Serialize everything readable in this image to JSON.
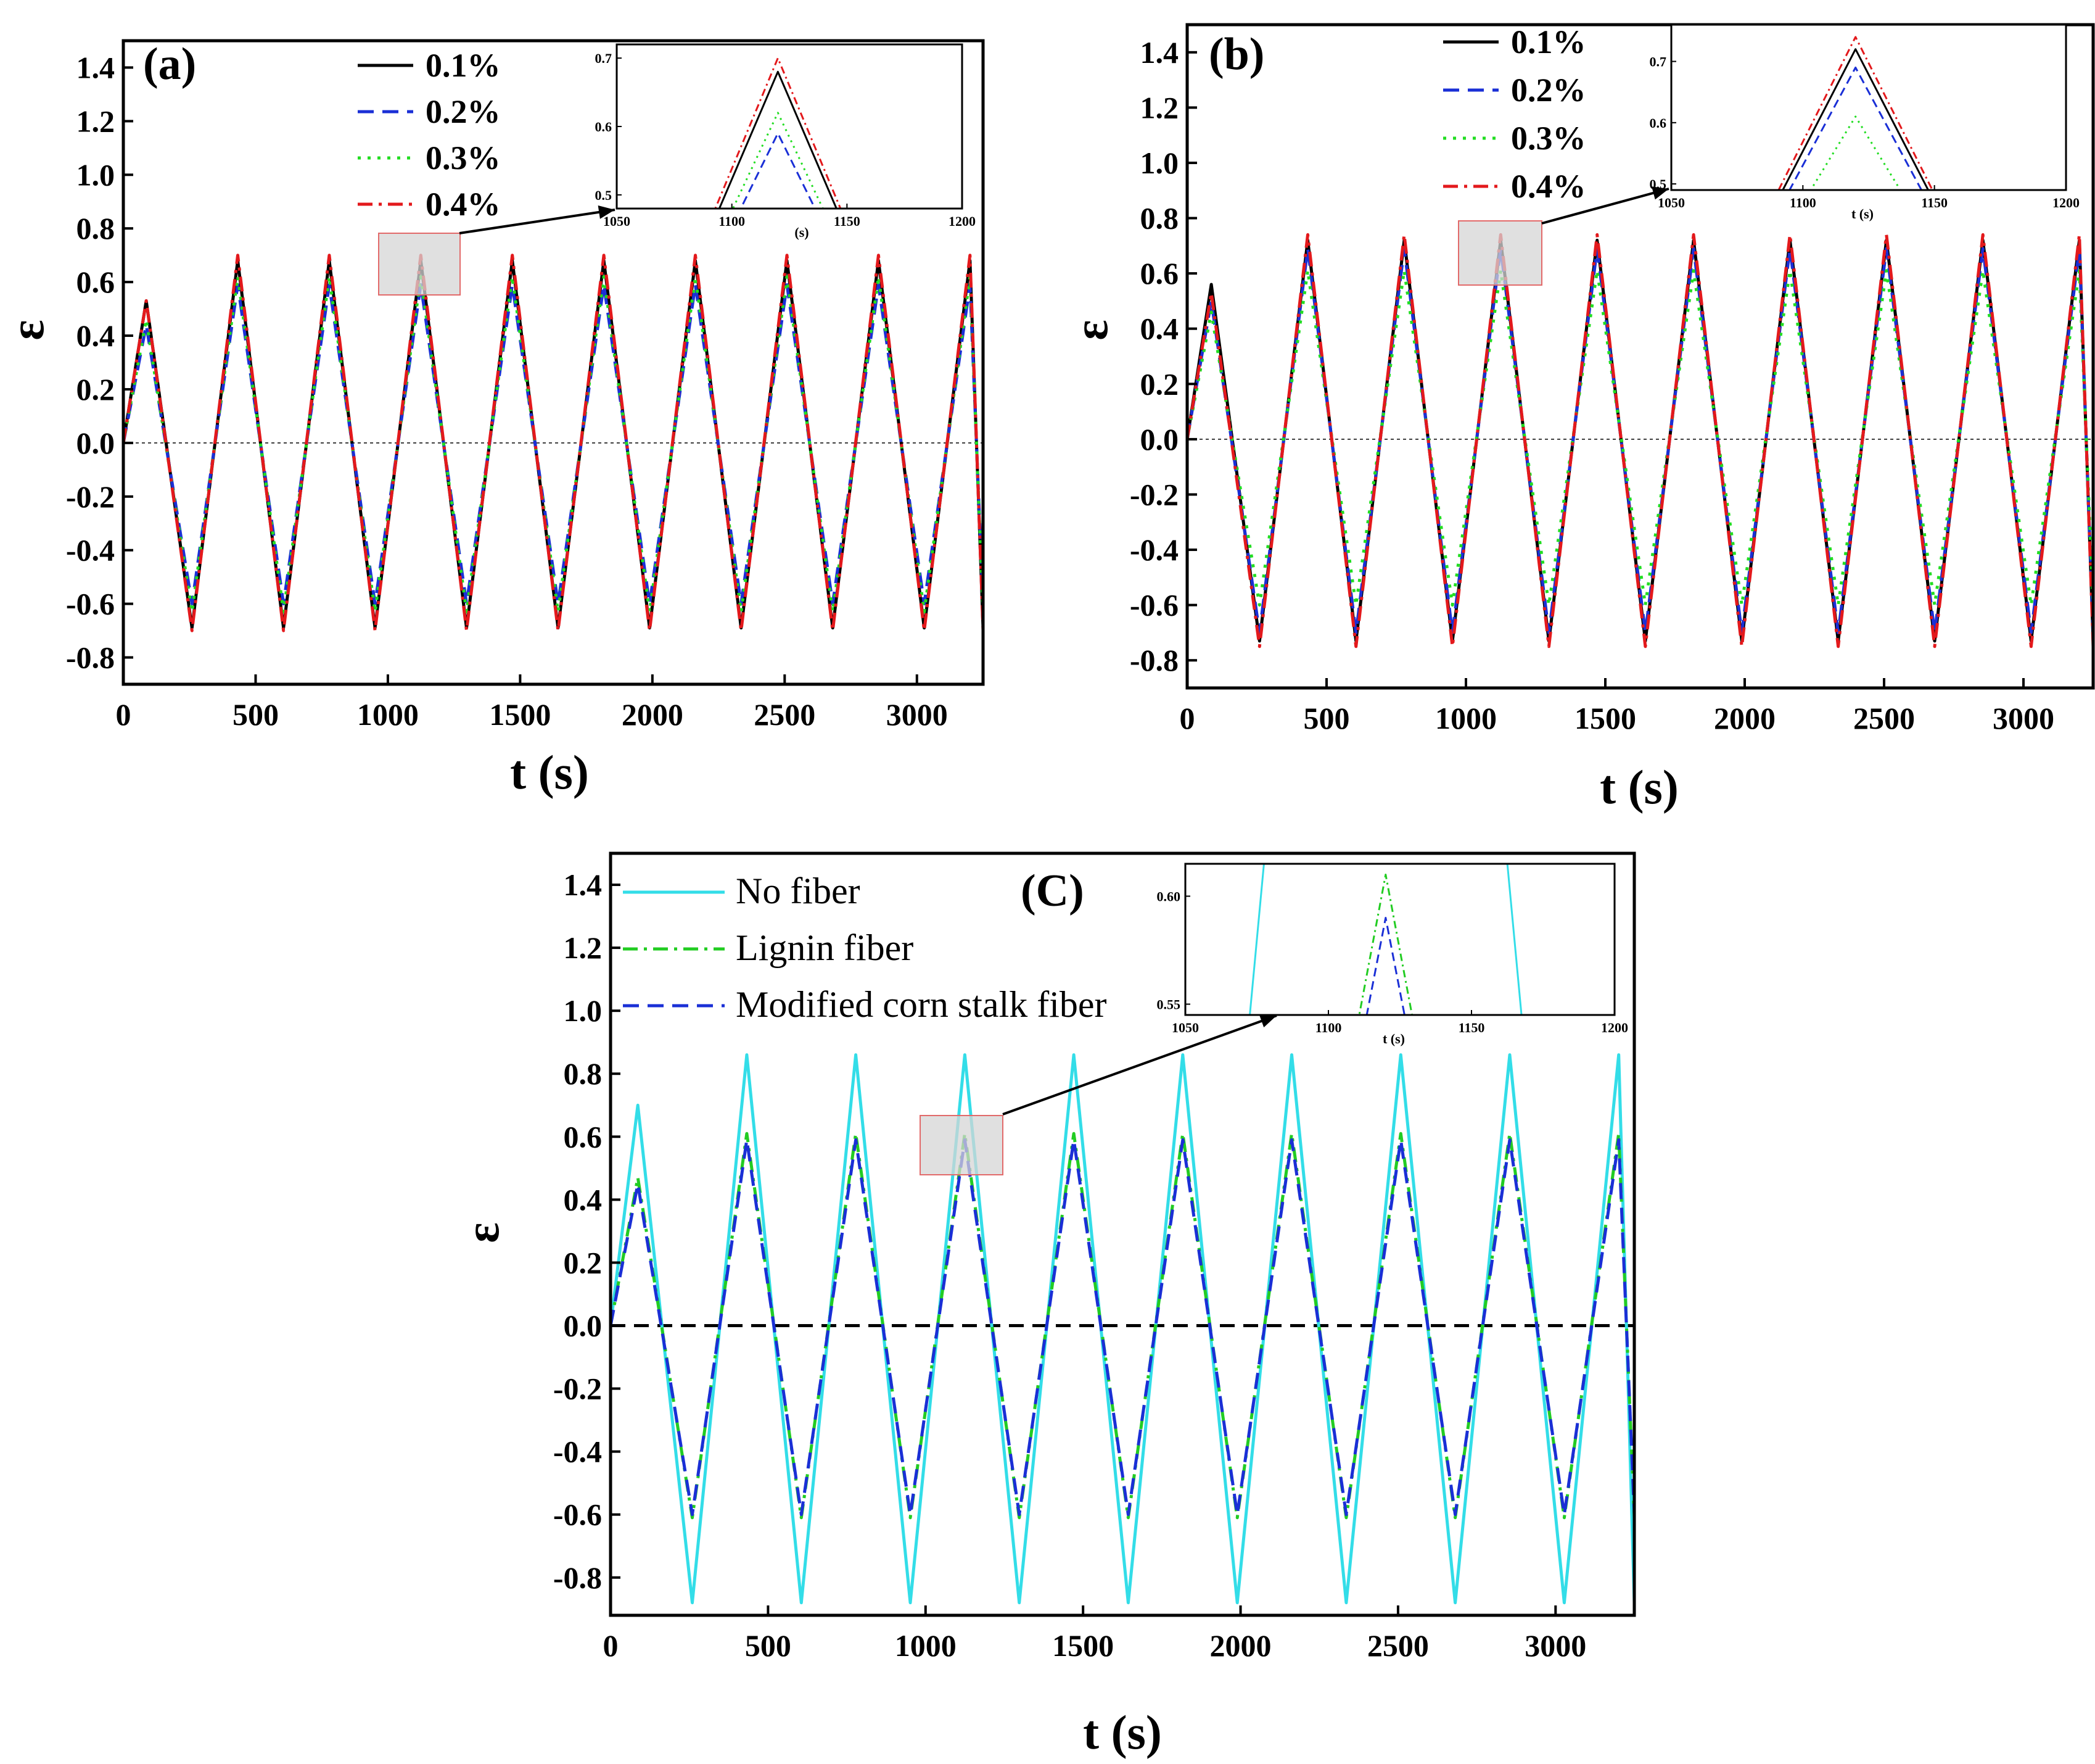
{
  "chart_data": [
    {
      "type": "line",
      "panel": "(a)",
      "xlabel": "t (s)",
      "ylabel": "ε",
      "xlim": [
        0,
        3250
      ],
      "ylim": [
        -0.9,
        1.5
      ],
      "xticks": [
        0,
        500,
        1000,
        1500,
        2000,
        2500,
        3000
      ],
      "yticks": [
        -0.8,
        -0.6,
        -0.4,
        -0.2,
        0.0,
        0.2,
        0.4,
        0.6,
        0.8,
        1.0,
        1.2,
        1.4
      ],
      "ytick_labels": [
        "-0.8",
        "-0.6",
        "-0.4",
        "-0.2",
        "0.0",
        "0.2",
        "0.4",
        "0.6",
        "0.8",
        "1.0",
        "1.2",
        "1.4"
      ],
      "xtick_labels": [
        "0",
        "500",
        "1000",
        "1500",
        "2000",
        "2500",
        "3000"
      ],
      "period_s": 346,
      "series": [
        {
          "name": "0.1%",
          "color": "#000000",
          "dash": "solid",
          "first_peak": 0.53,
          "peak": 0.68,
          "trough": -0.69
        },
        {
          "name": "0.2%",
          "color": "#1a2fd6",
          "dash": "dash",
          "first_peak": 0.44,
          "peak": 0.59,
          "trough": -0.6
        },
        {
          "name": "0.3%",
          "color": "#22dd22",
          "dash": "dot",
          "first_peak": 0.46,
          "peak": 0.62,
          "trough": -0.63
        },
        {
          "name": "0.4%",
          "color": "#e3191c",
          "dash": "dashdot",
          "first_peak": 0.53,
          "peak": 0.7,
          "trough": -0.7
        }
      ],
      "inset": {
        "xlim": [
          1050,
          1200
        ],
        "ylim": [
          0.48,
          0.72
        ],
        "xticks": [
          1050,
          1100,
          1150,
          1200
        ],
        "xtick_labels": [
          "1050",
          "1100",
          "1150",
          "1200"
        ],
        "yticks": [
          0.5,
          0.6,
          0.7
        ],
        "ytick_labels": [
          "0.5",
          "0.6",
          "0.7"
        ],
        "xlabel": "(s)",
        "peak_t": 1120,
        "shoulder_t": [
          1086,
          1154
        ]
      }
    },
    {
      "type": "line",
      "panel": "(b)",
      "xlabel": "t (s)",
      "ylabel": "ε",
      "xlim": [
        0,
        3250
      ],
      "ylim": [
        -0.9,
        1.5
      ],
      "xticks": [
        0,
        500,
        1000,
        1500,
        2000,
        2500,
        3000
      ],
      "yticks": [
        -0.8,
        -0.6,
        -0.4,
        -0.2,
        0.0,
        0.2,
        0.4,
        0.6,
        0.8,
        1.0,
        1.2,
        1.4
      ],
      "ytick_labels": [
        "-0.8",
        "-0.6",
        "-0.4",
        "-0.2",
        "0.0",
        "0.2",
        "0.4",
        "0.6",
        "0.8",
        "1.0",
        "1.2",
        "1.4"
      ],
      "xtick_labels": [
        "0",
        "500",
        "1000",
        "1500",
        "2000",
        "2500",
        "3000"
      ],
      "period_s": 346,
      "series": [
        {
          "name": "0.1%",
          "color": "#000000",
          "dash": "solid",
          "first_peak": 0.56,
          "peak": 0.72,
          "trough": -0.73
        },
        {
          "name": "0.2%",
          "color": "#1a2fd6",
          "dash": "dash",
          "first_peak": 0.5,
          "peak": 0.69,
          "trough": -0.7
        },
        {
          "name": "0.3%",
          "color": "#22dd22",
          "dash": "dot",
          "first_peak": 0.46,
          "peak": 0.61,
          "trough": -0.6
        },
        {
          "name": "0.4%",
          "color": "#e3191c",
          "dash": "dashdot",
          "first_peak": 0.53,
          "peak": 0.74,
          "trough": -0.75
        }
      ],
      "inset": {
        "xlim": [
          1050,
          1200
        ],
        "ylim": [
          0.49,
          0.76
        ],
        "xticks": [
          1050,
          1100,
          1150,
          1200
        ],
        "xtick_labels": [
          "1050",
          "1100",
          "1150",
          "1200"
        ],
        "yticks": [
          0.5,
          0.6,
          0.7
        ],
        "ytick_labels": [
          "0.5",
          "0.6",
          "0.7"
        ],
        "xlabel": "t (s)",
        "peak_t": 1120,
        "shoulder_t": [
          1088,
          1152
        ]
      }
    },
    {
      "type": "line",
      "panel": "(C)",
      "xlabel": "t (s)",
      "ylabel": "ε",
      "xlim": [
        0,
        3250
      ],
      "ylim": [
        -0.92,
        1.5
      ],
      "xticks": [
        0,
        500,
        1000,
        1500,
        2000,
        2500,
        3000
      ],
      "yticks": [
        -0.8,
        -0.6,
        -0.4,
        -0.2,
        0.0,
        0.2,
        0.4,
        0.6,
        0.8,
        1.0,
        1.2,
        1.4
      ],
      "ytick_labels": [
        "-0.8",
        "-0.6",
        "-0.4",
        "-0.2",
        "0.0",
        "0.2",
        "0.4",
        "0.6",
        "0.8",
        "1.0",
        "1.2",
        "1.4"
      ],
      "xtick_labels": [
        "0",
        "500",
        "1000",
        "1500",
        "2000",
        "2500",
        "3000"
      ],
      "period_s": 346,
      "series": [
        {
          "name": "No fiber",
          "color": "#33dde8",
          "dash": "solid",
          "first_peak": 0.7,
          "peak": 0.86,
          "trough": -0.88
        },
        {
          "name": "Lignin fiber",
          "color": "#22cc22",
          "dash": "dashdot",
          "first_peak": 0.47,
          "peak": 0.61,
          "trough": -0.61
        },
        {
          "name": "Modified corn stalk fiber",
          "color": "#1a2fd6",
          "dash": "dash",
          "first_peak": 0.45,
          "peak": 0.59,
          "trough": -0.6
        }
      ],
      "inset": {
        "xlim": [
          1050,
          1200
        ],
        "ylim": [
          0.545,
          0.615
        ],
        "xticks": [
          1050,
          1100,
          1150,
          1200
        ],
        "xtick_labels": [
          "1050",
          "1100",
          "1150",
          "1200"
        ],
        "yticks": [
          0.55,
          0.6
        ],
        "ytick_labels": [
          "0.55",
          "0.60"
        ],
        "xlabel": "t (s)",
        "peak_t": 1120,
        "nofiber_cross_t": [
          1075,
          1165
        ]
      }
    }
  ]
}
